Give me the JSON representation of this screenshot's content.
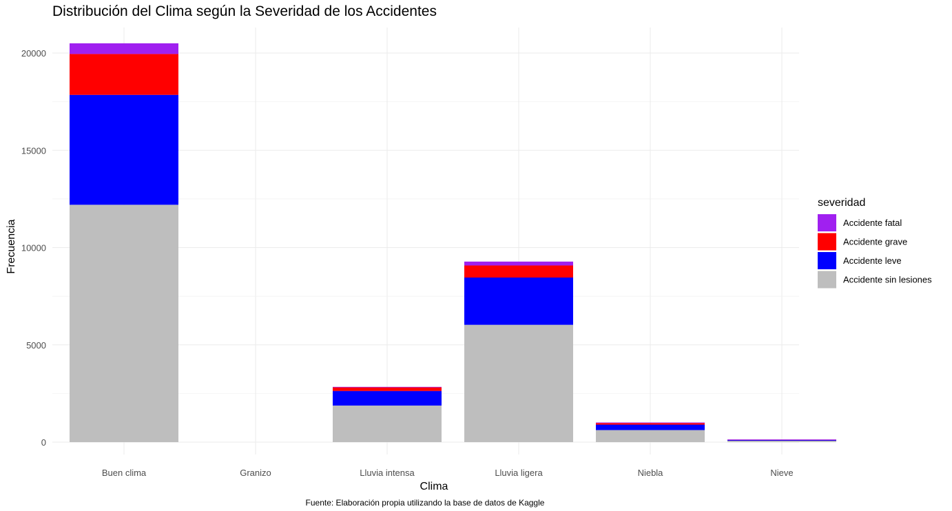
{
  "chart_data": {
    "type": "bar",
    "stacked": true,
    "title": "Distribución del Clima según la Severidad de los Accidentes",
    "xlabel": "Clima",
    "ylabel": "Frecuencia",
    "caption": "Fuente: Elaboración propia utilizando la base de datos de Kaggle",
    "categories": [
      "Buen clima",
      "Granizo",
      "Lluvia intensa",
      "Lluvia ligera",
      "Niebla",
      "Nieve"
    ],
    "ylim": [
      0,
      21500
    ],
    "yticks": [
      0,
      5000,
      10000,
      15000,
      20000
    ],
    "grid": true,
    "legend": {
      "title": "severidad",
      "position": "right"
    },
    "series": [
      {
        "name": "Accidente sin lesiones",
        "color": "#bebebe",
        "values": [
          12200,
          0,
          1880,
          6030,
          620,
          70
        ]
      },
      {
        "name": "Accidente leve",
        "color": "#0000ff",
        "values": [
          5650,
          0,
          750,
          2430,
          280,
          50
        ]
      },
      {
        "name": "Accidente grave",
        "color": "#ff0000",
        "values": [
          2100,
          0,
          190,
          620,
          80,
          10
        ]
      },
      {
        "name": "Accidente fatal",
        "color": "#a020f0",
        "values": [
          550,
          0,
          20,
          200,
          30,
          5
        ]
      }
    ],
    "legend_order": [
      "Accidente fatal",
      "Accidente grave",
      "Accidente leve",
      "Accidente sin lesiones"
    ]
  }
}
